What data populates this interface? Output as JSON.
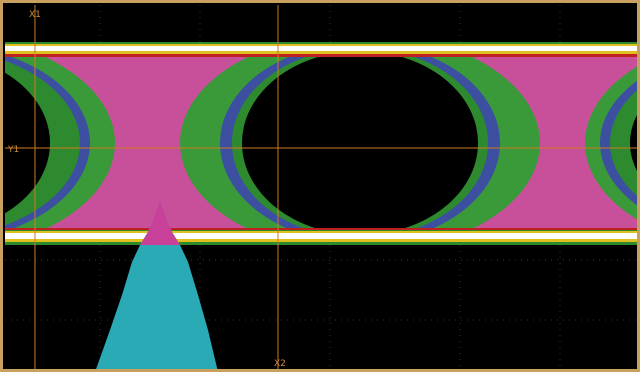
{
  "cursors": {
    "x1": "X1",
    "x2": "X2",
    "y1": "Y1"
  }
}
